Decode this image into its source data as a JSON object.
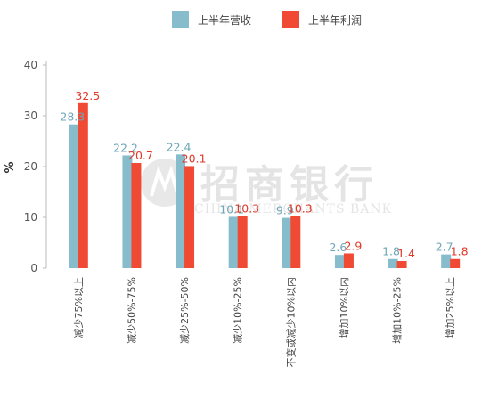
{
  "chart_data": {
    "type": "bar",
    "ylabel": "%",
    "ylim": [
      0,
      40
    ],
    "yticks": [
      0,
      10,
      20,
      30,
      40
    ],
    "categories": [
      "减少75%以上",
      "减少50%-75%",
      "减少25%-50%",
      "减少10%-25%",
      "不变或减少10%以内",
      "增加10%以内",
      "增加10%-25%",
      "增加25%以上"
    ],
    "series": [
      {
        "name": "上半年营收",
        "color": "#86bccb",
        "label_color": "#6fa7b8",
        "values": [
          28.3,
          22.2,
          22.4,
          10.1,
          9.9,
          2.6,
          1.8,
          2.7
        ]
      },
      {
        "name": "上半年利润",
        "color": "#f04a34",
        "label_color": "#e0392a",
        "values": [
          32.5,
          20.7,
          20.1,
          10.3,
          10.3,
          2.9,
          1.4,
          1.8
        ]
      }
    ],
    "legend_position": "top-right",
    "grid": false
  },
  "watermark": {
    "cn": "招商银行",
    "en": "CHINA MERCHANTS BANK"
  }
}
